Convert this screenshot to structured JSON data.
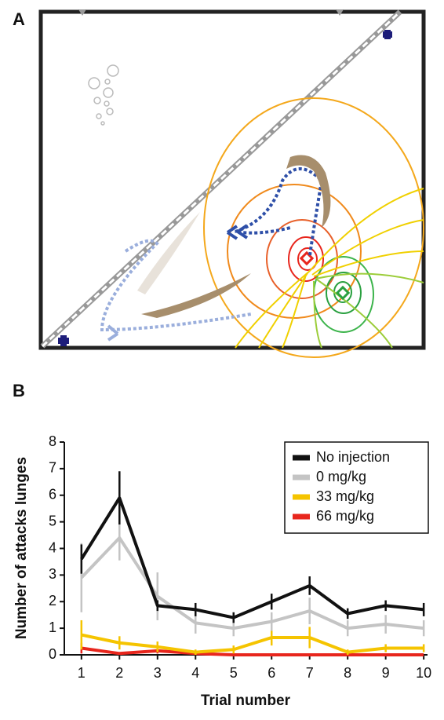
{
  "panels": {
    "a_label": "A",
    "b_label": "B"
  },
  "chart_data": {
    "type": "line",
    "xlabel": "Trial number",
    "ylabel": "Number of attacks lunges",
    "x": [
      1,
      2,
      3,
      4,
      5,
      6,
      7,
      8,
      9,
      10
    ],
    "xlim": [
      0.55,
      10.1
    ],
    "xticks": [
      1,
      2,
      3,
      4,
      5,
      6,
      7,
      8,
      9,
      10
    ],
    "ylim": [
      0,
      8
    ],
    "yticks": [
      0,
      1,
      2,
      3,
      4,
      5,
      6,
      7,
      8
    ],
    "legend": "upper right",
    "series": [
      {
        "name": "No injection",
        "color": "#111111",
        "values": [
          3.6,
          5.9,
          1.85,
          1.7,
          1.4,
          2.0,
          2.6,
          1.55,
          1.85,
          1.7
        ],
        "errors": [
          0.55,
          1.0,
          0.2,
          0.25,
          0.2,
          0.3,
          0.35,
          0.2,
          0.2,
          0.25
        ]
      },
      {
        "name": "0 mg/kg",
        "color": "#c4c4c4",
        "values": [
          2.9,
          4.4,
          2.2,
          1.2,
          1.0,
          1.25,
          1.65,
          1.0,
          1.15,
          1.0
        ],
        "errors": [
          1.3,
          0.85,
          0.9,
          0.4,
          0.3,
          0.35,
          0.5,
          0.3,
          0.35,
          0.3
        ]
      },
      {
        "name": "33 mg/kg",
        "color": "#f5c400",
        "values": [
          0.75,
          0.45,
          0.3,
          0.1,
          0.2,
          0.65,
          0.65,
          0.1,
          0.25,
          0.25
        ],
        "errors": [
          0.55,
          0.25,
          0.2,
          0.1,
          0.15,
          0.3,
          0.4,
          0.1,
          0.15,
          0.15
        ]
      },
      {
        "name": "66 mg/kg",
        "color": "#e8261d",
        "values": [
          0.25,
          0.05,
          0.15,
          0.05,
          0,
          0,
          0,
          0,
          0,
          0
        ],
        "errors": [
          0.2,
          0.05,
          0.1,
          0.05,
          0,
          0,
          0,
          0,
          0,
          0
        ]
      }
    ]
  }
}
